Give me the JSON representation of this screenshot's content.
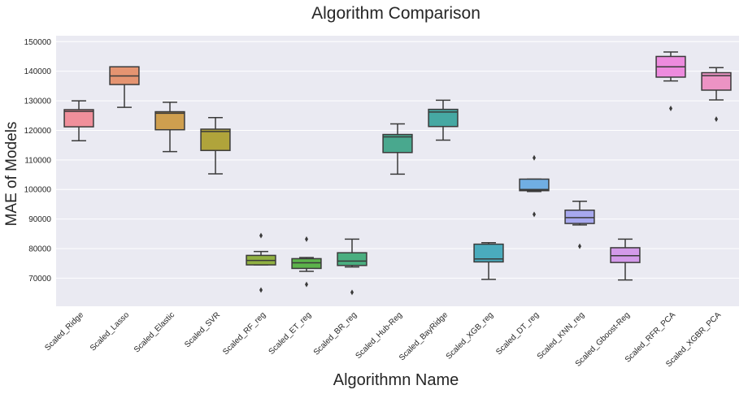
{
  "chart_data": {
    "type": "box",
    "title": "Algorithm Comparison",
    "xlabel": "Algorithmn Name",
    "ylabel": "MAE of Models",
    "ylim": [
      60500,
      152000
    ],
    "yticks": [
      70000,
      80000,
      90000,
      100000,
      110000,
      120000,
      130000,
      140000,
      150000
    ],
    "grid": true,
    "background": "#eaeaf2",
    "categories": [
      "Scaled_Ridge",
      "Scaled_Lasso",
      "Scaled_Elastic",
      "Scaled_SVR",
      "Scaled_RF_reg",
      "Scaled_ET_reg",
      "Scaled_BR_reg",
      "Scaled_Hub-Reg",
      "Scaled_BayRidge",
      "Scaled_XGB_reg",
      "Scaled_DT_reg",
      "Scaled_KNN_reg",
      "Scaled_Gboost-Reg",
      "Scaled_RFR_PCA",
      "Scaled_XGBR_PCA"
    ],
    "boxes": [
      {
        "category": "Scaled_Ridge",
        "color": "#f08f9b",
        "whislo": 116500,
        "q1": 121200,
        "med": 126400,
        "q3": 127000,
        "whishi": 130000,
        "fliers": []
      },
      {
        "category": "Scaled_Lasso",
        "color": "#e59471",
        "whislo": 127800,
        "q1": 135500,
        "med": 138400,
        "q3": 141500,
        "whishi": 141500,
        "fliers": []
      },
      {
        "category": "Scaled_Elastic",
        "color": "#cf9f4f",
        "whislo": 112800,
        "q1": 120200,
        "med": 125800,
        "q3": 126300,
        "whishi": 129500,
        "fliers": []
      },
      {
        "category": "Scaled_SVR",
        "color": "#b0a43b",
        "whislo": 105300,
        "q1": 113200,
        "med": 119600,
        "q3": 120400,
        "whishi": 124300,
        "fliers": []
      },
      {
        "category": "Scaled_RF_reg",
        "color": "#90b042",
        "whislo": 74500,
        "q1": 74500,
        "med": 76000,
        "q3": 77700,
        "whishi": 79000,
        "fliers": [
          84400,
          66000
        ]
      },
      {
        "category": "Scaled_ET_reg",
        "color": "#5cb34b",
        "whislo": 72300,
        "q1": 73300,
        "med": 75200,
        "q3": 76600,
        "whishi": 77000,
        "fliers": [
          83200,
          67900
        ]
      },
      {
        "category": "Scaled_BR_reg",
        "color": "#4aae80",
        "whislo": 73800,
        "q1": 74300,
        "med": 75800,
        "q3": 78600,
        "whishi": 83200,
        "fliers": [
          65200
        ]
      },
      {
        "category": "Scaled_Hub-Reg",
        "color": "#49a88e",
        "whislo": 105200,
        "q1": 112500,
        "med": 117800,
        "q3": 118600,
        "whishi": 122200,
        "fliers": []
      },
      {
        "category": "Scaled_BayRidge",
        "color": "#46a8a3",
        "whislo": 116700,
        "q1": 121300,
        "med": 126200,
        "q3": 127100,
        "whishi": 130200,
        "fliers": []
      },
      {
        "category": "Scaled_XGB_reg",
        "color": "#4aabbd",
        "whislo": 69600,
        "q1": 75500,
        "med": 76500,
        "q3": 81500,
        "whishi": 82000,
        "fliers": []
      },
      {
        "category": "Scaled_DT_reg",
        "color": "#70aee3",
        "whislo": 99300,
        "q1": 99600,
        "med": 100000,
        "q3": 103500,
        "whishi": 103500,
        "fliers": [
          110700,
          91600
        ]
      },
      {
        "category": "Scaled_KNN_reg",
        "color": "#a7a8ee",
        "whislo": 88000,
        "q1": 88500,
        "med": 90500,
        "q3": 93000,
        "whishi": 96000,
        "fliers": [
          80800
        ]
      },
      {
        "category": "Scaled_Gboost-Reg",
        "color": "#d39ae9",
        "whislo": 69400,
        "q1": 75300,
        "med": 77600,
        "q3": 80300,
        "whishi": 83200,
        "fliers": []
      },
      {
        "category": "Scaled_RFR_PCA",
        "color": "#ed8bde",
        "whislo": 136700,
        "q1": 138000,
        "med": 141500,
        "q3": 145000,
        "whishi": 146500,
        "fliers": [
          127400
        ]
      },
      {
        "category": "Scaled_XGBR_PCA",
        "color": "#ec93c4",
        "whislo": 130300,
        "q1": 133600,
        "med": 138500,
        "q3": 139500,
        "whishi": 141200,
        "fliers": [
          123800
        ]
      }
    ]
  }
}
